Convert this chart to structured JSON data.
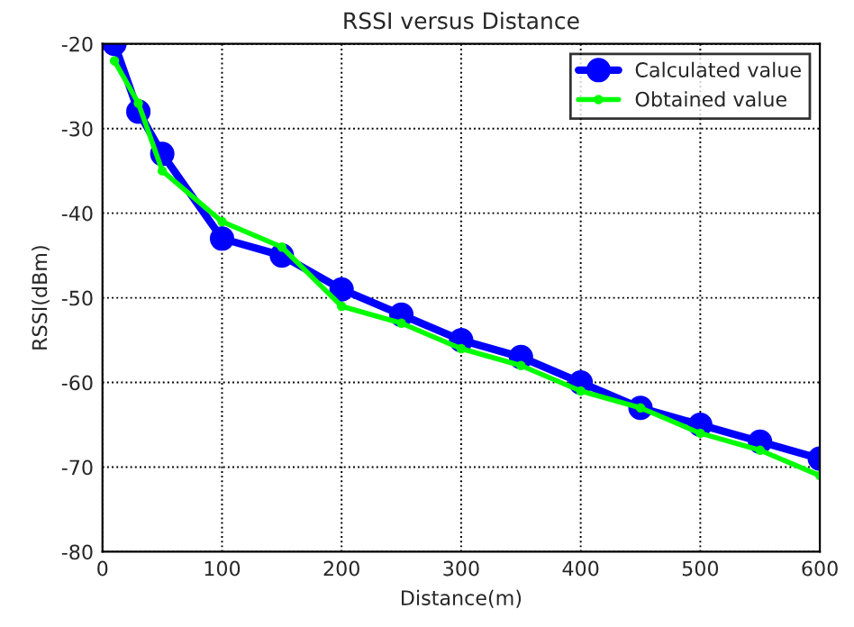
{
  "chart_data": {
    "type": "line",
    "title": "RSSI versus Distance",
    "xlabel": "Distance(m)",
    "ylabel": "RSSI(dBm)",
    "x": [
      10,
      30,
      50,
      100,
      150,
      200,
      250,
      300,
      350,
      400,
      450,
      500,
      550,
      600
    ],
    "series": [
      {
        "name": "Calculated value",
        "color": "#0000ff",
        "marker": "circle",
        "values": [
          -20,
          -28,
          -33,
          -43,
          -45,
          -49,
          -52,
          -55,
          -57,
          -60,
          -63,
          -65,
          -67,
          -69
        ]
      },
      {
        "name": "Obtained value",
        "color": "#00ff00",
        "marker": "circle",
        "values": [
          -22,
          -27,
          -35,
          -41,
          -44,
          -51,
          -53,
          -56,
          -58,
          -61,
          -63,
          -66,
          -68,
          -71
        ]
      }
    ],
    "xlim": [
      0,
      600
    ],
    "xticks": [
      0,
      100,
      200,
      300,
      400,
      500,
      600
    ],
    "ylim": [
      -80,
      -20
    ],
    "yticks": [
      -80,
      -70,
      -60,
      -50,
      -40,
      -30,
      -20
    ],
    "grid": true,
    "legend": "top right",
    "line_style": "solid"
  }
}
